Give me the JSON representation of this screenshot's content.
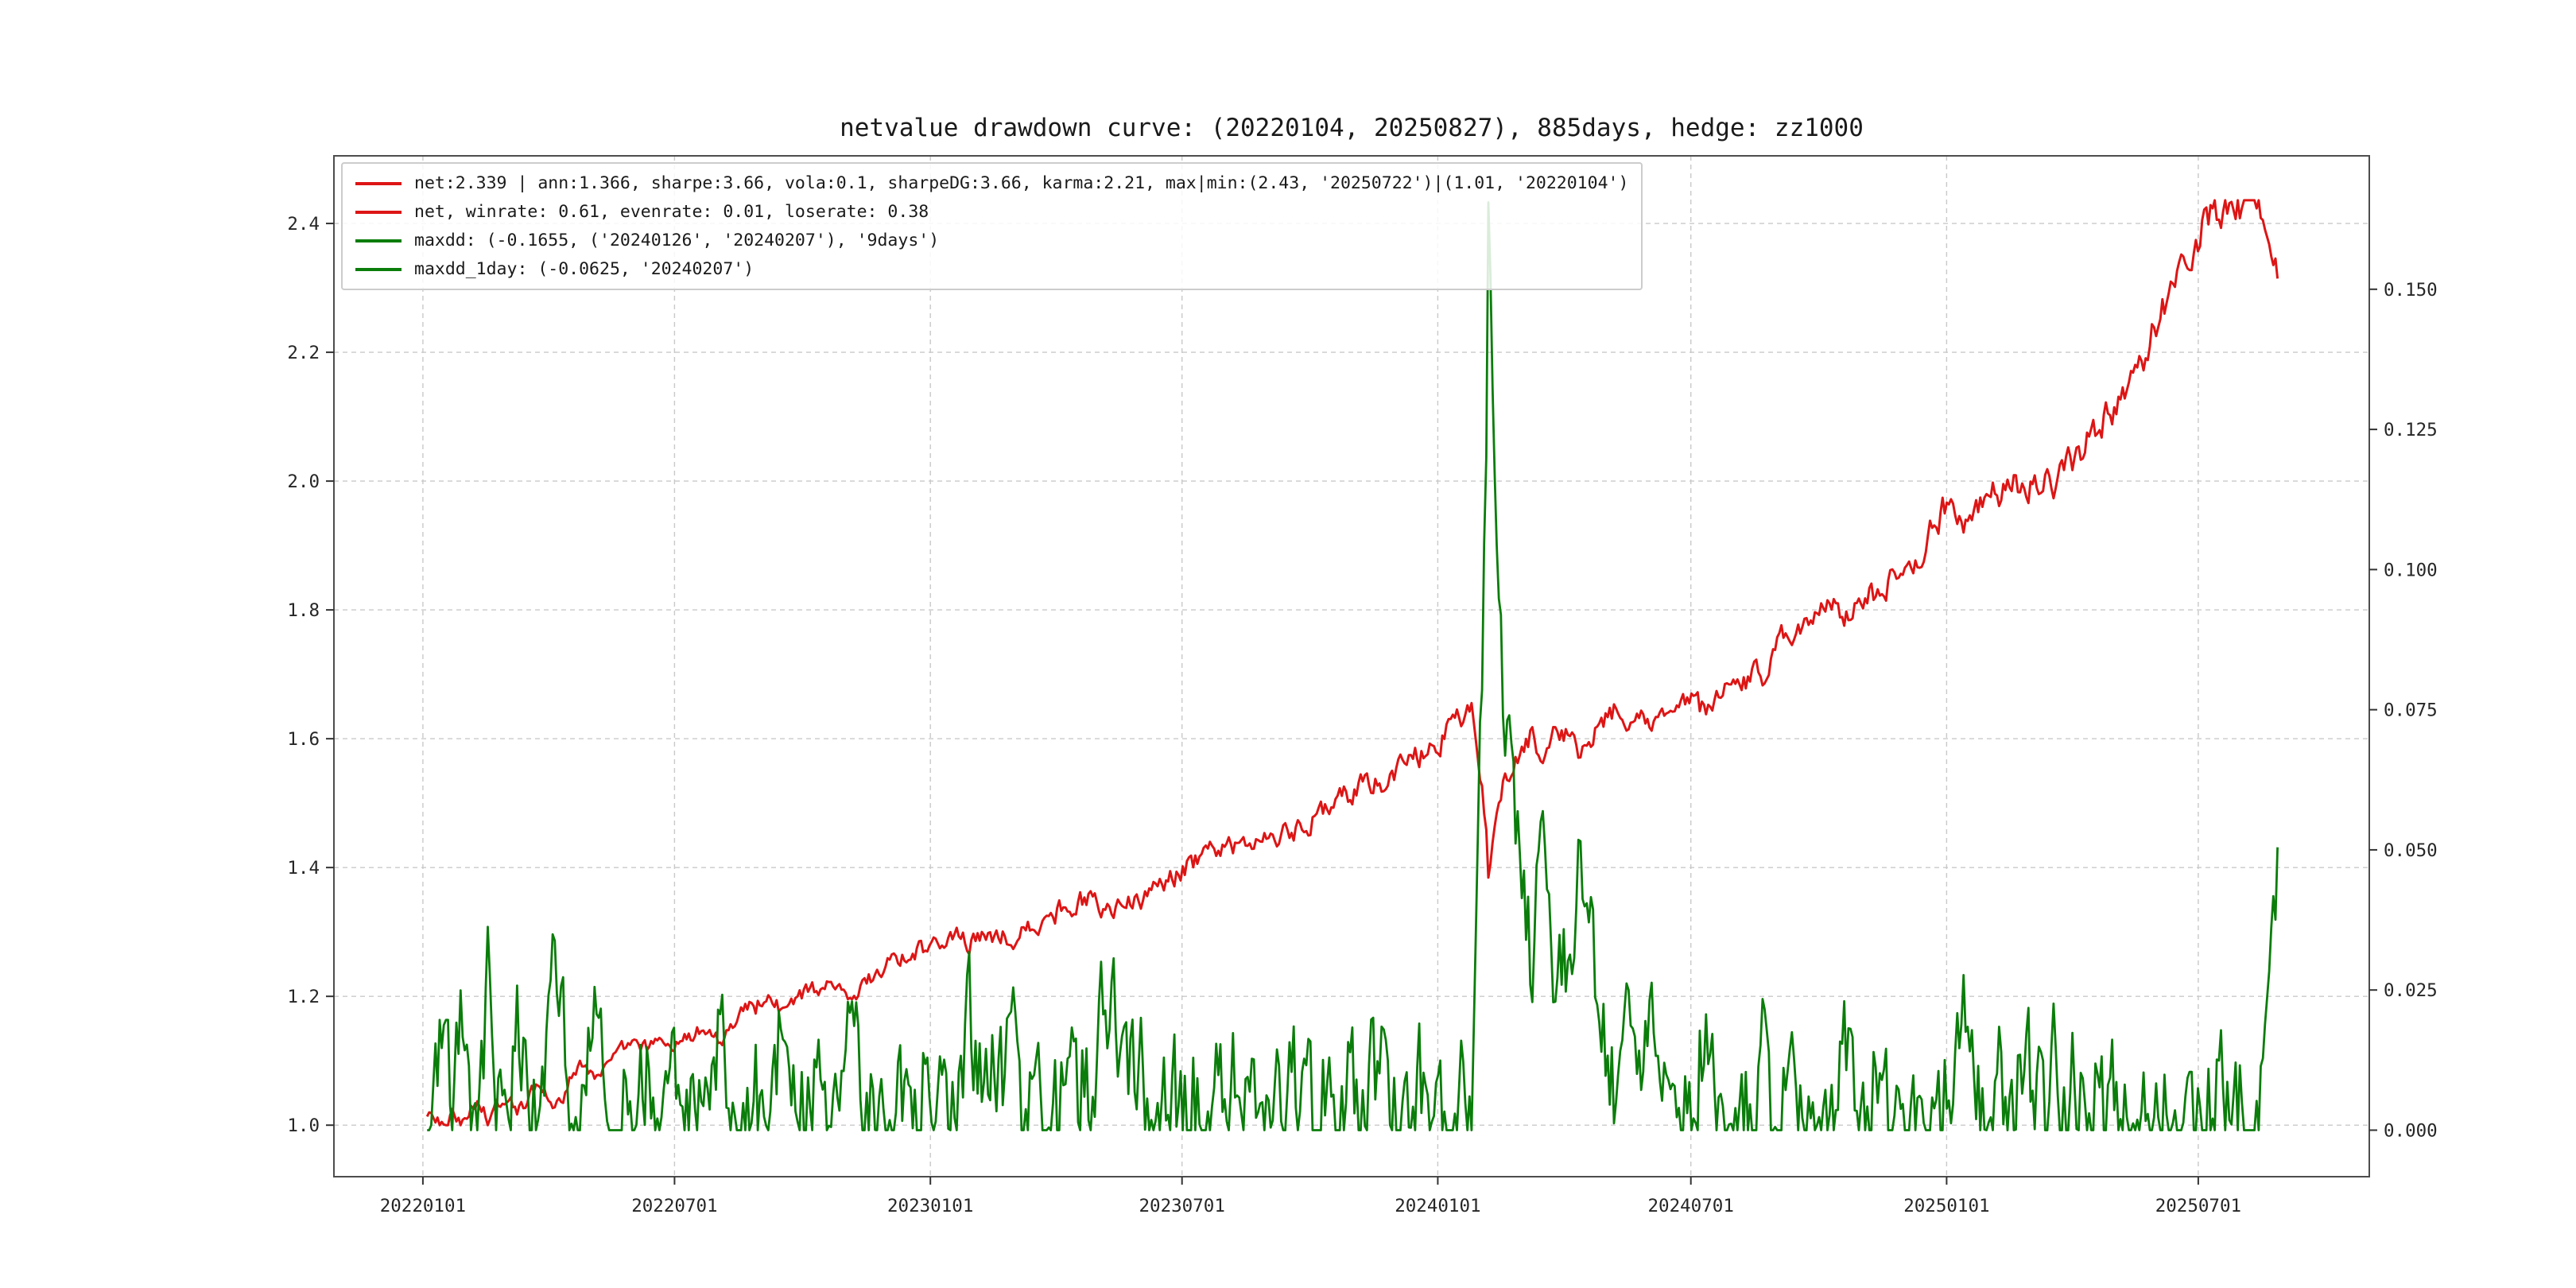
{
  "title": "netvalue drawdown curve: (20220104, 20250827), 885days, hedge: zz1000",
  "legend": {
    "items": [
      {
        "label": "net:2.339 | ann:1.366, sharpe:3.66, vola:0.1, sharpeDG:3.66, karma:2.21, max|min:(2.43, '20250722')|(1.01, '20220104')",
        "color": "#dd1515",
        "series": "net"
      },
      {
        "label": "net, winrate: 0.61, evenrate: 0.01, loserate: 0.38",
        "color": "#dd1515",
        "series": "net-winrate"
      },
      {
        "label": "maxdd: (-0.1655, ('20240126', '20240207'), '9days')",
        "color": "#0a7d0a",
        "series": "maxdd"
      },
      {
        "label": "maxdd_1day: (-0.0625, '20240207')",
        "color": "#0a7d0a",
        "series": "maxdd-1day"
      }
    ]
  },
  "chart_data": {
    "type": "line",
    "title": "netvalue drawdown curve: (20220104, 20250827), 885days, hedge: zz1000",
    "grid": true,
    "legend_position": "upper-left",
    "x_axis": {
      "kind": "date",
      "ticks": [
        "20220101",
        "20220701",
        "20230101",
        "20230701",
        "20240101",
        "20240701",
        "20250101",
        "20250701"
      ],
      "range": [
        "20211029",
        "20251101"
      ],
      "data_range": [
        "20220104",
        "20250827"
      ]
    },
    "y_left": {
      "ticks": [
        "1.0",
        "1.2",
        "1.4",
        "1.6",
        "1.8",
        "2.0",
        "2.2",
        "2.4"
      ],
      "range": [
        0.92,
        2.505
      ],
      "series": "net",
      "color": "#dd1515"
    },
    "y_right": {
      "ticks": [
        "0.000",
        "0.025",
        "0.050",
        "0.075",
        "0.100",
        "0.125",
        "0.150"
      ],
      "range": [
        -0.0083,
        0.1738
      ],
      "series": "drawdown",
      "color": "#0a7d0a"
    },
    "stats": {
      "net_final": 2.339,
      "ann": 1.366,
      "sharpe": 3.66,
      "vola": 0.1,
      "sharpeDG": 3.66,
      "karma": 2.21,
      "max": [
        2.43,
        "20250722"
      ],
      "min": [
        1.01,
        "20220104"
      ],
      "winrate": 0.61,
      "evenrate": 0.01,
      "loserate": 0.38,
      "maxdd": -0.1655,
      "maxdd_window": [
        "20240126",
        "20240207"
      ],
      "maxdd_days": "9days",
      "maxdd_1day": -0.0625,
      "maxdd_1day_date": "20240207",
      "days": 885,
      "hedge": "zz1000"
    },
    "series": [
      {
        "name": "net",
        "axis": "left",
        "color": "#dd1515",
        "points_count": 885,
        "anchors": [
          [
            "20220104",
            1.01
          ],
          [
            "20220114",
            1.0
          ],
          [
            "20220121",
            1.015
          ],
          [
            "20220128",
            1.005
          ],
          [
            "20220208",
            1.035
          ],
          [
            "20220218",
            1.01
          ],
          [
            "20220301",
            1.05
          ],
          [
            "20220311",
            1.025
          ],
          [
            "20220325",
            1.055
          ],
          [
            "20220408",
            1.035
          ],
          [
            "20220425",
            1.1
          ],
          [
            "20220505",
            1.075
          ],
          [
            "20220520",
            1.13
          ],
          [
            "20220610",
            1.12
          ],
          [
            "20220625",
            1.135
          ],
          [
            "20220708",
            1.13
          ],
          [
            "20220722",
            1.145
          ],
          [
            "20220805",
            1.125
          ],
          [
            "20220819",
            1.17
          ],
          [
            "20220901",
            1.19
          ],
          [
            "20220916",
            1.18
          ],
          [
            "20221010",
            1.21
          ],
          [
            "20221028",
            1.215
          ],
          [
            "20221111",
            1.21
          ],
          [
            "20221125",
            1.24
          ],
          [
            "20221209",
            1.255
          ],
          [
            "20221223",
            1.265
          ],
          [
            "20230106",
            1.28
          ],
          [
            "20230120",
            1.29
          ],
          [
            "20230203",
            1.285
          ],
          [
            "20230217",
            1.29
          ],
          [
            "20230303",
            1.295
          ],
          [
            "20230317",
            1.31
          ],
          [
            "20230331",
            1.33
          ],
          [
            "20230414",
            1.345
          ],
          [
            "20230428",
            1.35
          ],
          [
            "20230512",
            1.335
          ],
          [
            "20230526",
            1.345
          ],
          [
            "20230609",
            1.355
          ],
          [
            "20230623",
            1.38
          ],
          [
            "20230707",
            1.405
          ],
          [
            "20230721",
            1.425
          ],
          [
            "20230804",
            1.435
          ],
          [
            "20230818",
            1.44
          ],
          [
            "20230901",
            1.455
          ],
          [
            "20230915",
            1.45
          ],
          [
            "20230929",
            1.47
          ],
          [
            "20231013",
            1.49
          ],
          [
            "20231027",
            1.51
          ],
          [
            "20231110",
            1.525
          ],
          [
            "20231124",
            1.54
          ],
          [
            "20231208",
            1.555
          ],
          [
            "20231222",
            1.575
          ],
          [
            "20240105",
            1.605
          ],
          [
            "20240112",
            1.625
          ],
          [
            "20240119",
            1.64
          ],
          [
            "20240126",
            1.645
          ],
          [
            "20240131",
            1.56
          ],
          [
            "20240205",
            1.465
          ],
          [
            "20240207",
            1.372
          ],
          [
            "20240209",
            1.44
          ],
          [
            "20240216",
            1.52
          ],
          [
            "20240223",
            1.555
          ],
          [
            "20240301",
            1.57
          ],
          [
            "20240308",
            1.6
          ],
          [
            "20240315",
            1.585
          ],
          [
            "20240322",
            1.605
          ],
          [
            "20240329",
            1.615
          ],
          [
            "20240412",
            1.58
          ],
          [
            "20240426",
            1.63
          ],
          [
            "20240510",
            1.645
          ],
          [
            "20240517",
            1.605
          ],
          [
            "20240524",
            1.65
          ],
          [
            "20240607",
            1.61
          ],
          [
            "20240614",
            1.645
          ],
          [
            "20240628",
            1.655
          ],
          [
            "20240712",
            1.64
          ],
          [
            "20240726",
            1.665
          ],
          [
            "20240809",
            1.68
          ],
          [
            "20240823",
            1.705
          ],
          [
            "20240906",
            1.755
          ],
          [
            "20240920",
            1.78
          ],
          [
            "20241004",
            1.8
          ],
          [
            "20241018",
            1.79
          ],
          [
            "20241101",
            1.815
          ],
          [
            "20241115",
            1.83
          ],
          [
            "20241129",
            1.855
          ],
          [
            "20241213",
            1.895
          ],
          [
            "20241227",
            1.95
          ],
          [
            "20250103",
            1.97
          ],
          [
            "20250110",
            1.93
          ],
          [
            "20250117",
            1.95
          ],
          [
            "20250124",
            1.96
          ],
          [
            "20250207",
            1.985
          ],
          [
            "20250221",
            1.995
          ],
          [
            "20250307",
            2.0
          ],
          [
            "20250321",
            1.99
          ],
          [
            "20250404",
            2.04
          ],
          [
            "20250418",
            2.075
          ],
          [
            "20250502",
            2.12
          ],
          [
            "20250516",
            2.17
          ],
          [
            "20250530",
            2.23
          ],
          [
            "20250613",
            2.3
          ],
          [
            "20250627",
            2.36
          ],
          [
            "20250704",
            2.39
          ],
          [
            "20250711",
            2.41
          ],
          [
            "20250718",
            2.425
          ],
          [
            "20250722",
            2.43
          ],
          [
            "20250730",
            2.425
          ],
          [
            "20250806",
            2.43
          ],
          [
            "20250813",
            2.42
          ],
          [
            "20250820",
            2.39
          ],
          [
            "20250827",
            2.345
          ]
        ]
      },
      {
        "name": "drawdown",
        "axis": "right",
        "color": "#0a7d0a",
        "points_count": 885,
        "derived": "running-peak drawdown of net series",
        "max_value": 0.1655,
        "max_window": [
          "20240126",
          "20240207"
        ],
        "max_1day": 0.0625
      }
    ]
  }
}
